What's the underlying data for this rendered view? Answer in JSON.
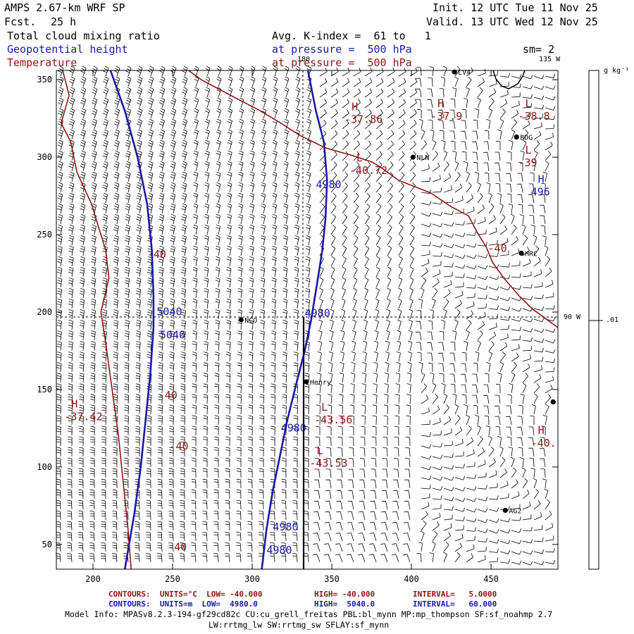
{
  "header": {
    "model": "AMPS 2.67-km WRF SP",
    "forecast_label": "Fcst.",
    "forecast_hours": "25 h",
    "init": "Init. 12 UTC Tue 11 Nov 25",
    "valid": "Valid. 13 UTC Wed 12 Nov 25",
    "field1": "Total cloud mixing ratio",
    "field2": "Geopotential height",
    "field3": "Temperature",
    "avg_label": "Avg. K-index =  61 to   1",
    "pressure1": "at pressure =  500 hPa",
    "pressure2": "at pressure =  500 hPa",
    "sm": "sm= 2"
  },
  "colors": {
    "height_contour": "#1a1aa8",
    "temperature_contour": "#8c1414",
    "text": "#000000"
  },
  "axes": {
    "x_ticks": [
      200,
      250,
      300,
      350,
      400,
      450
    ],
    "y_ticks": [
      50,
      100,
      150,
      200,
      250,
      300,
      350
    ],
    "x_range": [
      177,
      492
    ],
    "y_range": [
      34,
      356
    ]
  },
  "meridians": {
    "m180": "180",
    "m135w": "135 W",
    "m90w": "90 W"
  },
  "colorbar": {
    "unit": "g kg⁻¹",
    "value": ".01"
  },
  "stations": [
    {
      "name": "LV4",
      "x": 427,
      "y": 355
    },
    {
      "name": "BDG",
      "x": 466,
      "y": 313
    },
    {
      "name": "NLN",
      "x": 401,
      "y": 300
    },
    {
      "name": "HRC",
      "x": 469,
      "y": 238
    },
    {
      "name": "NCO",
      "x": 293,
      "y": 195
    },
    {
      "name": "Henry",
      "x": 334,
      "y": 155
    },
    {
      "name": "AG2",
      "x": 459,
      "y": 72
    },
    {
      "name": "",
      "x": 489,
      "y": 142
    }
  ],
  "extrema": [
    {
      "sym": "H",
      "val": "-37.86",
      "x": 358,
      "y": 324,
      "color": "red"
    },
    {
      "sym": "H",
      "val": "-37.9",
      "x": 412,
      "y": 326,
      "color": "red"
    },
    {
      "sym": "L",
      "val": "-38.8",
      "x": 467,
      "y": 326,
      "color": "red"
    },
    {
      "sym": "L",
      "val": "-39",
      "x": 467,
      "y": 296,
      "color": "red"
    },
    {
      "sym": "L",
      "val": "-40.72",
      "x": 361,
      "y": 291,
      "color": "red"
    },
    {
      "sym": "H",
      "val": "496",
      "x": 475,
      "y": 277,
      "color": "blue"
    },
    {
      "sym": "H",
      "val": "-37.42",
      "x": 182,
      "y": 132,
      "color": "red"
    },
    {
      "sym": "L",
      "val": "-43.56",
      "x": 339,
      "y": 130,
      "color": "red"
    },
    {
      "sym": "L",
      "val": "-43.53",
      "x": 336,
      "y": 102,
      "color": "red"
    },
    {
      "sym": "H",
      "val": "-40.",
      "x": 475,
      "y": 115,
      "color": "red"
    }
  ],
  "contour_labels": [
    {
      "text": "4980",
      "x": 340,
      "y": 280,
      "color": "blue"
    },
    {
      "text": "4980",
      "x": 333,
      "y": 197,
      "color": "blue"
    },
    {
      "text": "5040",
      "x": 240,
      "y": 198,
      "color": "blue"
    },
    {
      "text": "5040",
      "x": 242,
      "y": 183,
      "color": "blue"
    },
    {
      "text": "4980",
      "x": 318,
      "y": 123,
      "color": "blue"
    },
    {
      "text": "4980",
      "x": 313,
      "y": 59,
      "color": "blue"
    },
    {
      "text": "4980",
      "x": 309,
      "y": 44,
      "color": "blue"
    },
    {
      "text": "-40",
      "x": 234,
      "y": 235,
      "color": "red"
    },
    {
      "text": "-40",
      "x": 241,
      "y": 144,
      "color": "red"
    },
    {
      "text": "-40",
      "x": 248,
      "y": 111,
      "color": "red"
    },
    {
      "text": "-40",
      "x": 247,
      "y": 46,
      "color": "red"
    },
    {
      "text": "-40",
      "x": 448,
      "y": 239,
      "color": "red"
    }
  ],
  "contours": {
    "height": [
      [
        [
          211,
          356
        ],
        [
          220,
          330
        ],
        [
          228,
          300
        ],
        [
          234,
          270
        ],
        [
          237,
          240
        ],
        [
          238,
          210
        ],
        [
          238,
          190
        ],
        [
          236,
          160
        ],
        [
          233,
          130
        ],
        [
          230,
          100
        ],
        [
          226,
          70
        ],
        [
          220,
          34
        ]
      ],
      [
        [
          335,
          356
        ],
        [
          340,
          330
        ],
        [
          345,
          310
        ],
        [
          347,
          285
        ],
        [
          346,
          260
        ],
        [
          344,
          240
        ],
        [
          341,
          220
        ],
        [
          337,
          195
        ],
        [
          333,
          175
        ],
        [
          328,
          155
        ],
        [
          322,
          130
        ],
        [
          318,
          110
        ],
        [
          313,
          85
        ],
        [
          309,
          60
        ],
        [
          306,
          34
        ]
      ]
    ],
    "temperature": [
      [
        [
          181,
          356
        ],
        [
          185,
          340
        ],
        [
          180,
          322
        ],
        [
          186,
          310
        ],
        [
          190,
          290
        ],
        [
          199,
          270
        ],
        [
          208,
          240
        ],
        [
          210,
          222
        ],
        [
          205,
          200
        ],
        [
          208,
          180
        ],
        [
          212,
          150
        ],
        [
          216,
          120
        ],
        [
          219,
          90
        ],
        [
          222,
          60
        ],
        [
          224,
          34
        ]
      ],
      [
        [
          260,
          356
        ],
        [
          268,
          350
        ],
        [
          290,
          338
        ],
        [
          305,
          330
        ],
        [
          318,
          322
        ],
        [
          330,
          314
        ],
        [
          346,
          306
        ],
        [
          363,
          301
        ],
        [
          375,
          297
        ],
        [
          380,
          294
        ],
        [
          392,
          285
        ],
        [
          412,
          277
        ],
        [
          425,
          268
        ],
        [
          436,
          262
        ],
        [
          441,
          252
        ],
        [
          447,
          242
        ],
        [
          451,
          232
        ],
        [
          458,
          222
        ],
        [
          468,
          210
        ],
        [
          476,
          202
        ],
        [
          484,
          196
        ],
        [
          492,
          190
        ]
      ]
    ]
  },
  "footer": {
    "row1_left": "CONTOURS:  UNITS=°C  LOW= -40.000",
    "row1_high": "HIGH= -40.000",
    "row1_int": "INTERVAL=   5.0000",
    "row2_left": "CONTOURS:  UNITS=m  LOW=  4980.0",
    "row2_high": "HIGH=  5040.0",
    "row2_int": "INTERVAL=   60.000",
    "info1": "Model Info: MPASv8.2.3-194-gf29cd82c CU:cu_grell_freitas PBL:bl_mynn MP:mp_thompson SF:sf_noahmp 2.7",
    "info2": "LW:rrtmg_lw SW:rrtmg_sw SFLAY:sf_mynn"
  }
}
